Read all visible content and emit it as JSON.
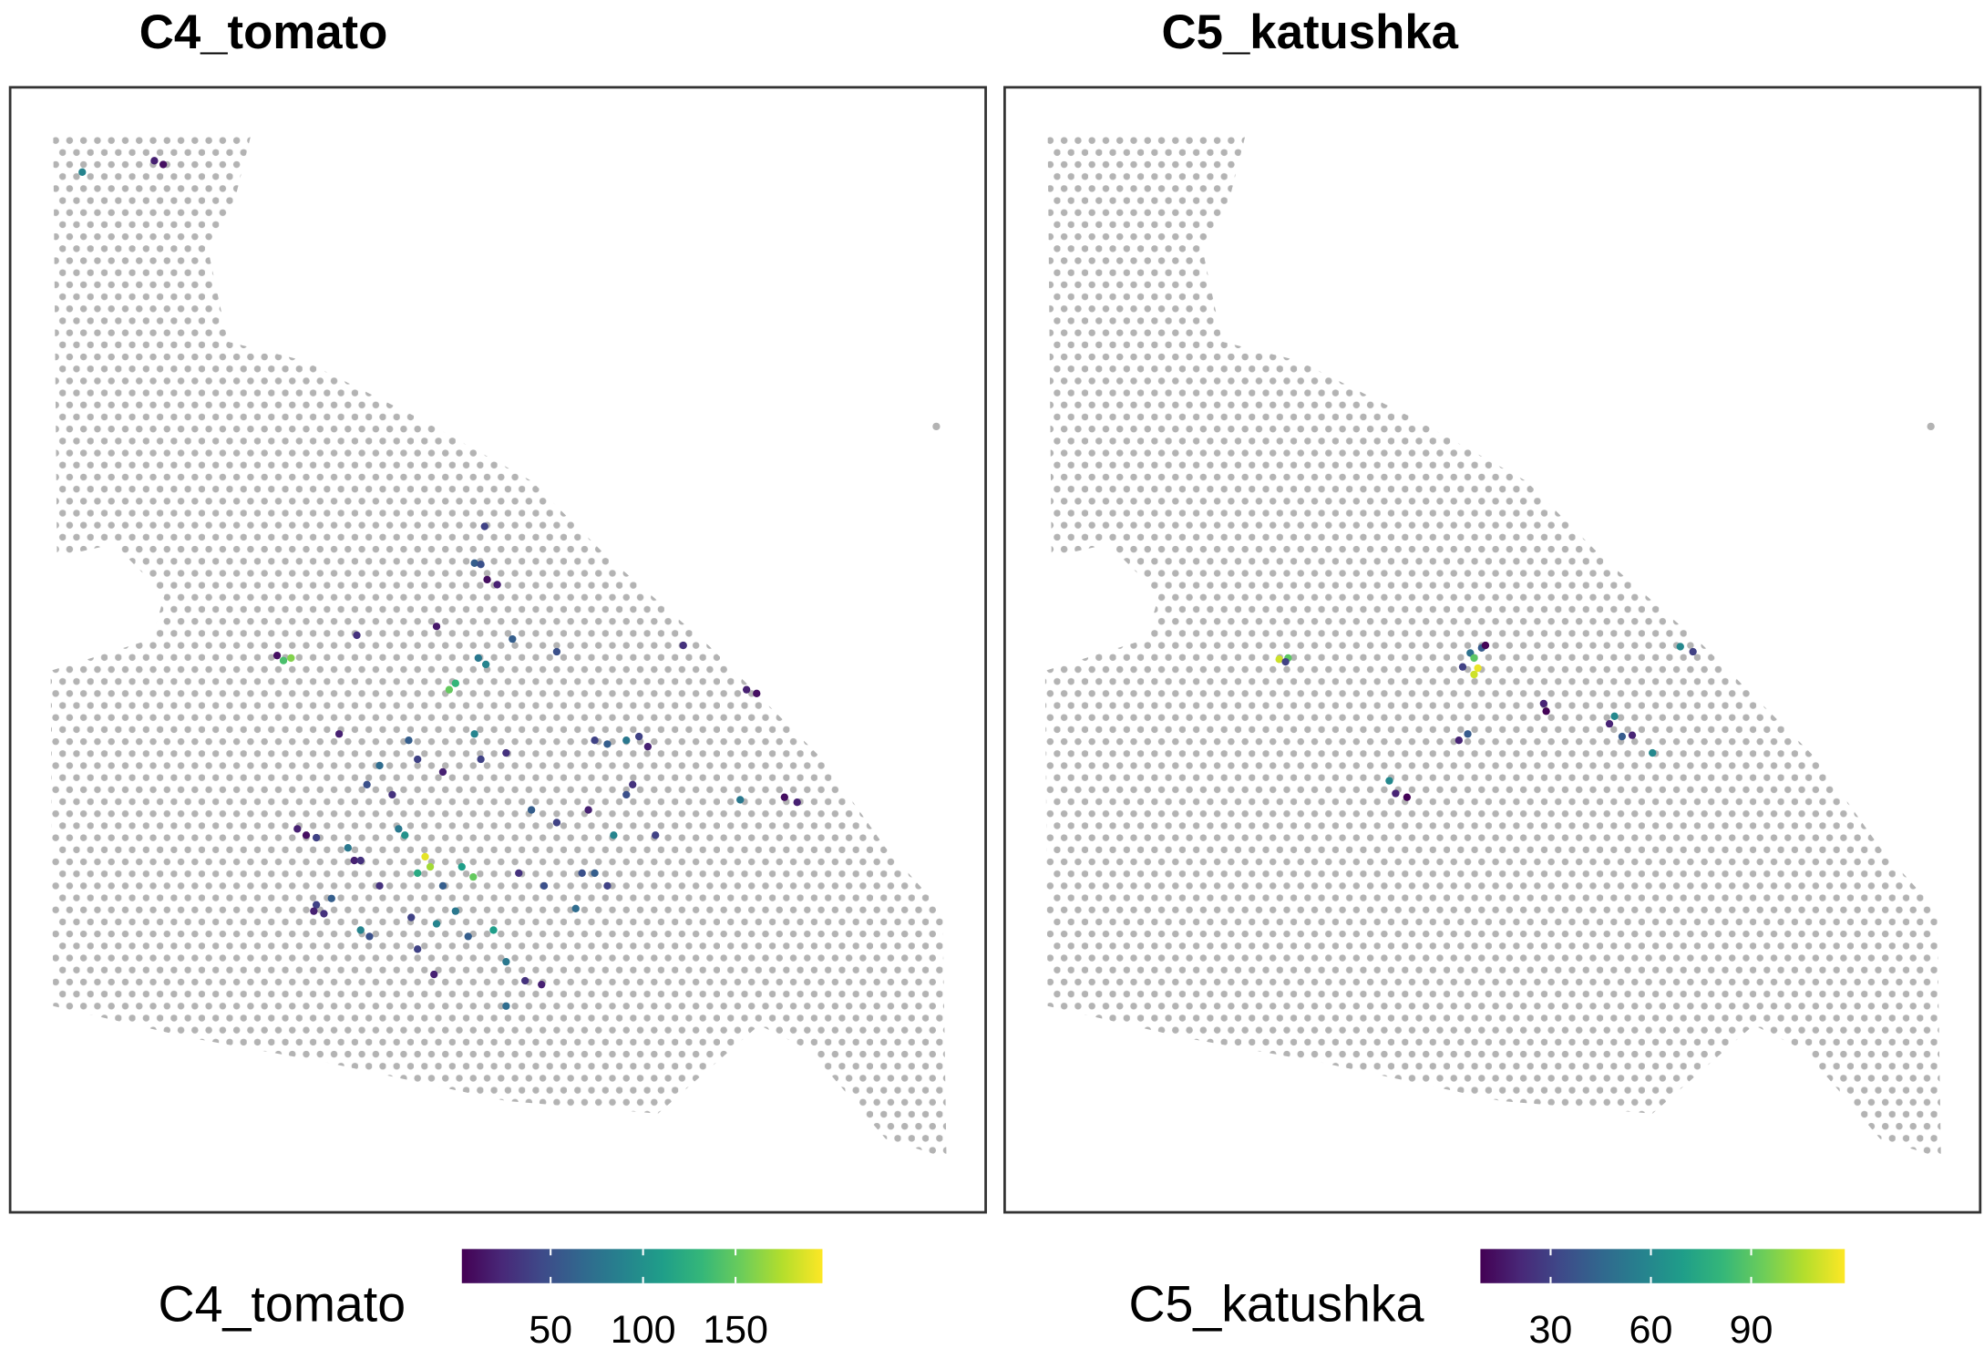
{
  "chart_data": [
    {
      "type": "scatter",
      "title": "C4_tomato",
      "colorbar_title": "C4_tomato",
      "colormap": "viridis",
      "na_color": "#b3b3b3",
      "xlim": [
        0,
        771
      ],
      "ylim": [
        889,
        0
      ],
      "colorbar_lim": [
        2,
        197
      ],
      "colorbar_ticks": [
        50,
        100,
        150
      ],
      "x": [
        114,
        121,
        57,
        216,
        222,
        211,
        375,
        367,
        372,
        377,
        385,
        337,
        347,
        352,
        370,
        376,
        397,
        432,
        274,
        260,
        315,
        322,
        292,
        282,
        302,
        342,
        367,
        372,
        392,
        462,
        472,
        487,
        497,
        504,
        532,
        582,
        590,
        577,
        612,
        622,
        492,
        487,
        510,
        477,
        457,
        462,
        472,
        447,
        422,
        402,
        328,
        332,
        322,
        312,
        307,
        366,
        357,
        342,
        352,
        337,
        317,
        292,
        272,
        242,
        248,
        254,
        240,
        277,
        284,
        322,
        335,
        362,
        382,
        392,
        407,
        420,
        392,
        227,
        234,
        242,
        267,
        277,
        432,
        412,
        452
      ],
      "y": [
        58,
        61,
        67,
        453,
        451,
        449,
        347,
        376,
        377,
        389,
        393,
        426,
        476,
        471,
        451,
        456,
        436,
        446,
        433,
        511,
        516,
        531,
        536,
        551,
        559,
        541,
        511,
        531,
        526,
        516,
        519,
        516,
        513,
        521,
        441,
        476,
        479,
        563,
        561,
        565,
        551,
        559,
        591,
        591,
        571,
        621,
        631,
        649,
        631,
        621,
        608,
        616,
        621,
        591,
        586,
        624,
        616,
        631,
        651,
        661,
        656,
        631,
        611,
        646,
        653,
        641,
        651,
        666,
        671,
        681,
        701,
        671,
        666,
        691,
        706,
        709,
        726,
        586,
        591,
        593,
        601,
        611,
        581,
        571,
        621
      ],
      "values": [
        20,
        10,
        90,
        140,
        160,
        10,
        40,
        60,
        50,
        10,
        20,
        15,
        150,
        130,
        80,
        90,
        60,
        50,
        30,
        20,
        60,
        40,
        70,
        50,
        30,
        20,
        90,
        40,
        30,
        40,
        60,
        80,
        40,
        20,
        30,
        20,
        10,
        80,
        10,
        20,
        30,
        50,
        40,
        90,
        20,
        60,
        40,
        70,
        50,
        30,
        190,
        170,
        120,
        100,
        80,
        150,
        110,
        60,
        80,
        90,
        40,
        30,
        20,
        40,
        30,
        60,
        20,
        90,
        50,
        40,
        20,
        60,
        110,
        80,
        30,
        20,
        70,
        20,
        10,
        40,
        80,
        30,
        40,
        60,
        50
      ]
    },
    {
      "type": "scatter",
      "title": "C5_katushka",
      "colorbar_title": "C5_katushka",
      "colormap": "viridis",
      "na_color": "#b3b3b3",
      "xlim": [
        0,
        771
      ],
      "ylim": [
        889,
        0
      ],
      "colorbar_lim": [
        9,
        118
      ],
      "colorbar_ticks": [
        30,
        60,
        90
      ],
      "x": [
        217,
        224,
        222,
        368,
        371,
        374,
        377,
        380,
        362,
        371,
        426,
        428,
        359,
        366,
        482,
        478,
        488,
        496,
        512,
        534,
        544,
        304,
        309,
        318
      ],
      "y": [
        452,
        451,
        454,
        447,
        451,
        459,
        443,
        441,
        458,
        464,
        487,
        493,
        516,
        511,
        497,
        503,
        513,
        512,
        526,
        442,
        446,
        548,
        558,
        561
      ],
      "values": [
        110,
        90,
        30,
        50,
        90,
        115,
        40,
        10,
        30,
        110,
        20,
        10,
        20,
        40,
        60,
        20,
        40,
        20,
        60,
        60,
        30,
        60,
        20,
        10
      ]
    }
  ]
}
